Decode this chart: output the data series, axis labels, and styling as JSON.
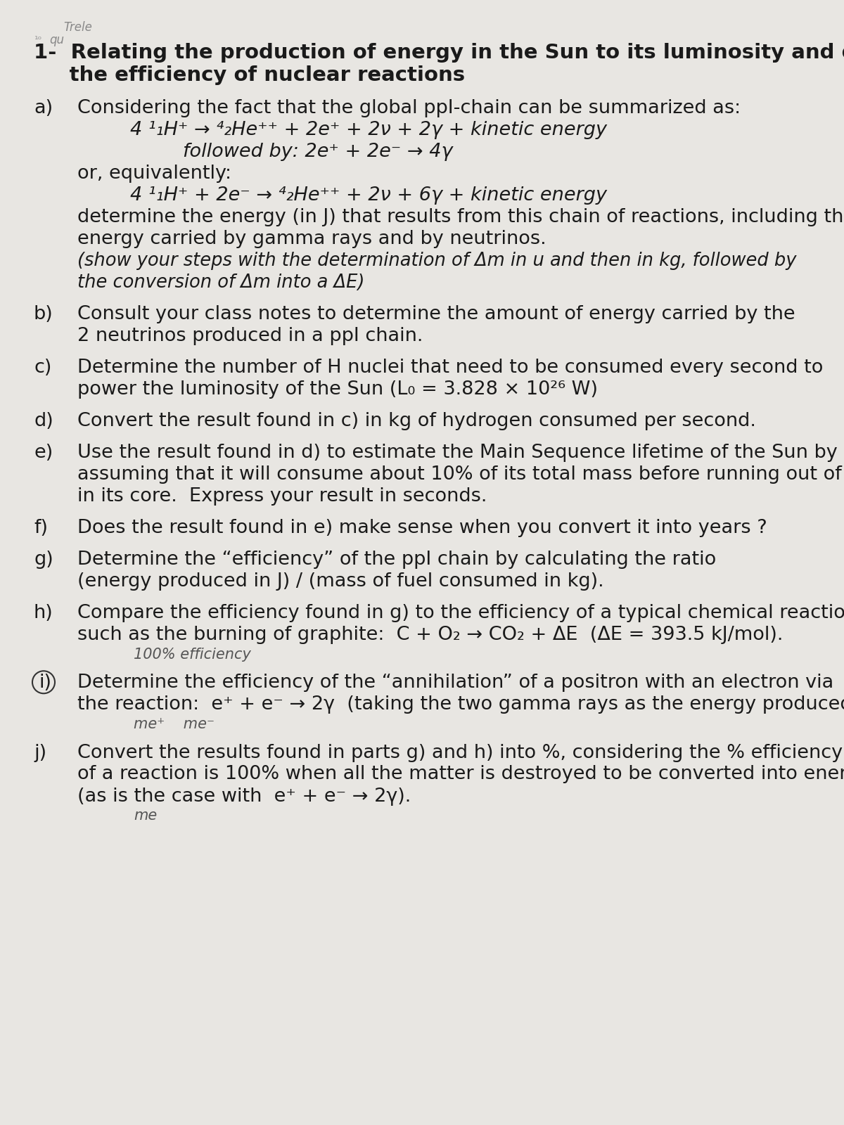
{
  "bg_color": "#e8e6e2",
  "text_color": "#1a1a1a",
  "page_width": 12.0,
  "page_height": 16.0,
  "title_line1": "1-  Relating the production of energy in the Sun to its luminosity and determining",
  "title_line2": "     the efficiency of nuclear reactions",
  "sections": [
    {
      "label": "a)",
      "content": [
        {
          "text": "Considering the fact that the global ppI-chain can be summarized as:",
          "style": "normal"
        },
        {
          "text": "4 ¹₁H⁺ → ⁴₂He⁺⁺ + 2e⁺ + 2ν + 2γ + kinetic energy",
          "style": "eq1"
        },
        {
          "text": "followed by: 2e⁺ + 2e⁻ → 4γ",
          "style": "eq2"
        },
        {
          "text": "or, equivalently:",
          "style": "normal"
        },
        {
          "text": "4 ¹₁H⁺ + 2e⁻ → ⁴₂He⁺⁺ + 2ν + 6γ + kinetic energy",
          "style": "eq1"
        },
        {
          "text": "determine the energy (in J) that results from this chain of reactions, including the",
          "style": "normal"
        },
        {
          "text": "energy carried by gamma rays and by neutrinos.",
          "style": "normal_u"
        },
        {
          "text": "(show your steps with the determination of Δm in u and then in kg, followed by",
          "style": "italic"
        },
        {
          "text": "the conversion of Δm into a ΔE)",
          "style": "italic"
        }
      ]
    },
    {
      "label": "b)",
      "content": [
        {
          "text": "Consult your class notes to determine the amount of energy carried by the",
          "style": "normal"
        },
        {
          "text": "2 neutrinos produced in a ppI chain.",
          "style": "normal"
        }
      ]
    },
    {
      "label": "c)",
      "content": [
        {
          "text": "Determine the number of H nuclei that need to be consumed every second to",
          "style": "normal"
        },
        {
          "text": "power the luminosity of the Sun (L₀ = 3.828 × 10²⁶ W)",
          "style": "normal"
        }
      ]
    },
    {
      "label": "d)",
      "content": [
        {
          "text": "Convert the result found in c) in kg of hydrogen consumed per second.",
          "style": "normal"
        }
      ]
    },
    {
      "label": "e)",
      "content": [
        {
          "text": "Use the result found in d) to estimate the Main Sequence lifetime of the Sun by",
          "style": "normal"
        },
        {
          "text": "assuming that it will consume about 10% of its total mass before running out of H",
          "style": "normal"
        },
        {
          "text": "in its core.  Express your result in seconds.",
          "style": "normal"
        }
      ]
    },
    {
      "label": "f)",
      "content": [
        {
          "text": "Does the result found in e) make sense when you convert it into years ?",
          "style": "normal"
        }
      ]
    },
    {
      "label": "g)",
      "content": [
        {
          "text": "Determine the “efficiency” of the ppI chain by calculating the ratio",
          "style": "normal"
        },
        {
          "text": "(energy produced in J) / (mass of fuel consumed in kg).",
          "style": "normal"
        }
      ]
    },
    {
      "label": "h)",
      "content": [
        {
          "text": "Compare the efficiency found in g) to the efficiency of a typical chemical reaction",
          "style": "normal"
        },
        {
          "text": "such as the burning of graphite:  C + O₂ → CO₂ + ΔE  (ΔE = 393.5 kJ/mol).",
          "style": "normal"
        },
        {
          "text": "100% efficiency",
          "style": "hw_small"
        }
      ]
    },
    {
      "label": "i)",
      "circle": true,
      "content": [
        {
          "text": "Determine the efficiency of the “annihilation” of a positron with an electron via",
          "style": "normal"
        },
        {
          "text": "the reaction:  e⁺ + e⁻ → 2γ  (taking the two gamma rays as the energy produced)",
          "style": "normal"
        },
        {
          "text": "me⁺    me⁻",
          "style": "hw_small"
        }
      ]
    },
    {
      "label": "j)",
      "content": [
        {
          "text": "Convert the results found in parts g) and h) into %, considering the % efficiency",
          "style": "normal"
        },
        {
          "text": "of a reaction is 100% when all the matter is destroyed to be converted into energy",
          "style": "normal"
        },
        {
          "text": "(as is the case with  e⁺ + e⁻ → 2γ).",
          "style": "normal"
        },
        {
          "text": "me",
          "style": "hw_small"
        }
      ]
    }
  ]
}
